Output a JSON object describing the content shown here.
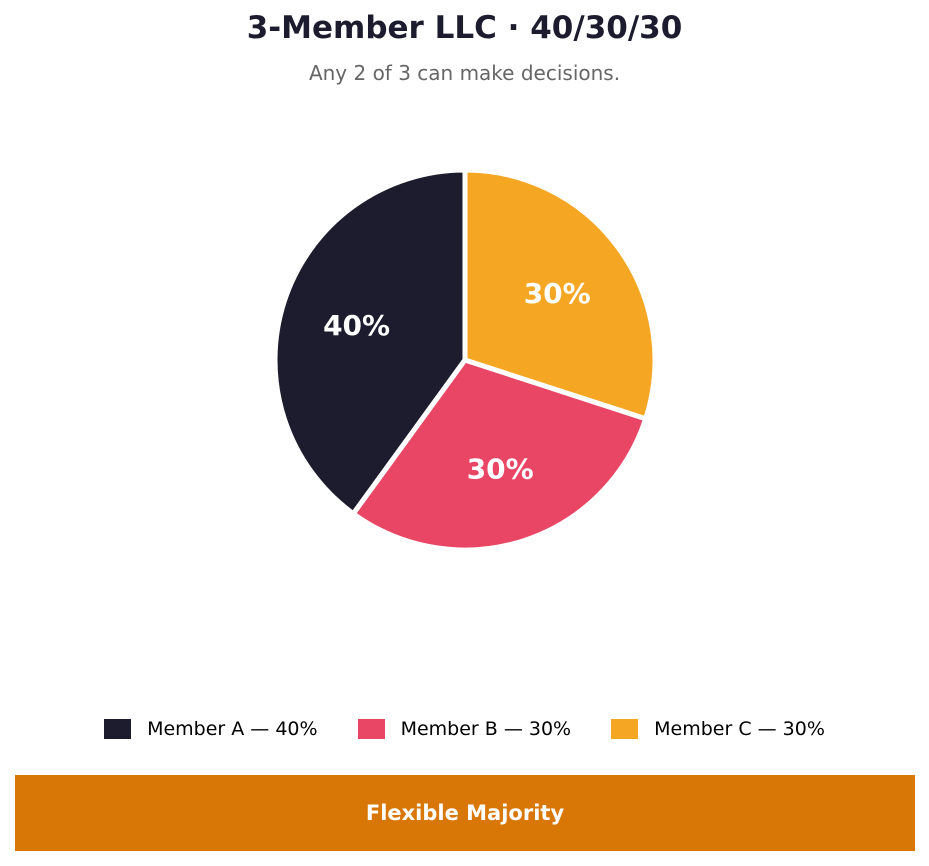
{
  "header": {
    "title": "3-Member LLC · 40/30/30",
    "subtitle": "Any 2 of 3 can make decisions."
  },
  "legend": [
    {
      "label": "Member A — 40%",
      "color": "#1c1c2e"
    },
    {
      "label": "Member B — 30%",
      "color": "#e84664"
    },
    {
      "label": "Member C — 30%",
      "color": "#f5a623"
    }
  ],
  "slice_labels": [
    "40%",
    "30%",
    "30%"
  ],
  "banner": {
    "label": "Flexible Majority",
    "color": "#d97706"
  },
  "chart_data": {
    "type": "pie",
    "title": "3-Member LLC · 40/30/30",
    "subtitle": "Any 2 of 3 can make decisions.",
    "categories": [
      "Member A",
      "Member B",
      "Member C"
    ],
    "values": [
      40,
      30,
      30
    ],
    "colors": [
      "#1c1c2e",
      "#e84664",
      "#f5a623"
    ],
    "start_angle": 90,
    "direction": "counterclockwise",
    "legend_position": "bottom",
    "annotation": "Flexible Majority"
  }
}
